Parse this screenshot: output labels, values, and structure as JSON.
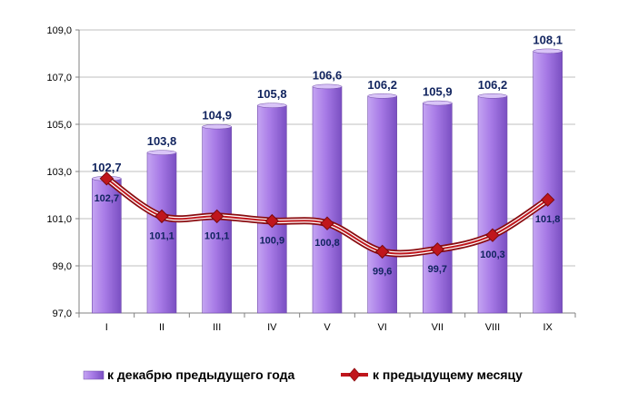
{
  "chart_data": {
    "type": "bar",
    "categories": [
      "I",
      "II",
      "III",
      "IV",
      "V",
      "VI",
      "VII",
      "VIII",
      "IX"
    ],
    "ylim": [
      97.0,
      109.0
    ],
    "yticks": [
      "97,0",
      "99,0",
      "101,0",
      "103,0",
      "105,0",
      "107,0",
      "109,0"
    ],
    "yticks_values": [
      97,
      99,
      101,
      103,
      105,
      107,
      109
    ],
    "series": [
      {
        "name": "к декабрю предыдущего года",
        "type": "bar",
        "color": "#a77ae6",
        "values": [
          102.7,
          103.8,
          104.9,
          105.8,
          106.6,
          106.2,
          105.9,
          106.2,
          108.1
        ],
        "labels": [
          "102,7",
          "103,8",
          "104,9",
          "105,8",
          "106,6",
          "106,2",
          "105,9",
          "106,2",
          "108,1"
        ]
      },
      {
        "name": "к предыдущему месяцу",
        "type": "line",
        "color": "#c0161c",
        "values": [
          102.7,
          101.1,
          101.1,
          100.9,
          100.8,
          99.6,
          99.7,
          100.3,
          101.8
        ],
        "labels": [
          "102,7",
          "101,1",
          "101,1",
          "100,9",
          "100,8",
          "99,6",
          "99,7",
          "100,3",
          "101,8"
        ]
      }
    ],
    "grid": true,
    "legend": "bottom"
  }
}
